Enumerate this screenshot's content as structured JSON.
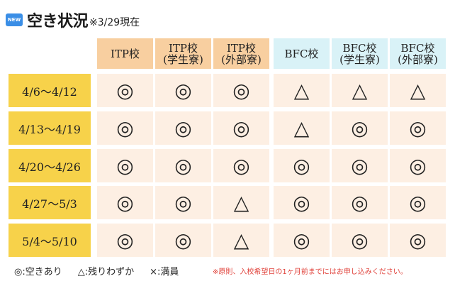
{
  "title": {
    "badge": "NEW",
    "main": "空き状況",
    "note": "※3/29現在"
  },
  "columns": [
    {
      "line1": "ITP校",
      "line2": "",
      "type": "itp"
    },
    {
      "line1": "ITP校",
      "line2": "(学生寮)",
      "type": "itp"
    },
    {
      "line1": "ITP校",
      "line2": "(外部寮)",
      "type": "itp"
    },
    {
      "line1": "BFC校",
      "line2": "",
      "type": "bfc"
    },
    {
      "line1": "BFC校",
      "line2": "(学生寮)",
      "type": "bfc"
    },
    {
      "line1": "BFC校",
      "line2": "(外部寮)",
      "type": "bfc"
    }
  ],
  "rows": [
    {
      "label": "4/6～4/12",
      "cells": [
        "◎",
        "◎",
        "◎",
        "△",
        "△",
        "△"
      ]
    },
    {
      "label": "4/13～4/19",
      "cells": [
        "◎",
        "◎",
        "◎",
        "△",
        "◎",
        "◎"
      ]
    },
    {
      "label": "4/20～4/26",
      "cells": [
        "◎",
        "◎",
        "◎",
        "◎",
        "◎",
        "◎"
      ]
    },
    {
      "label": "4/27～5/3",
      "cells": [
        "◎",
        "◎",
        "△",
        "◎",
        "◎",
        "◎"
      ]
    },
    {
      "label": "5/4～5/10",
      "cells": [
        "◎",
        "◎",
        "△",
        "◎",
        "◎",
        "◎"
      ]
    }
  ],
  "legend": {
    "available": "◎:空きあり",
    "few": "△:残りわずか",
    "full": "×:満員"
  },
  "footnote": "※原則、入校希望日の1ヶ月前までにはお申し込みください。",
  "colors": {
    "itp_header": "#f8cfa0",
    "bfc_header": "#d9f2f7",
    "row_header": "#f7d24a",
    "cell": "#fdefe3",
    "footnote": "#e0413a"
  }
}
